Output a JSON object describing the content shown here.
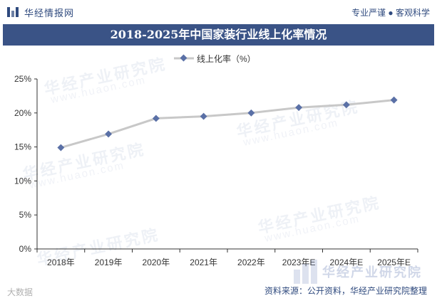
{
  "header": {
    "brand": "华经情报网",
    "tagline": "专业严谨 ● 客观科学"
  },
  "chart_data": {
    "type": "line",
    "title": "2018-2025年中国家装行业线上化率情况",
    "categories": [
      "2018年",
      "2019年",
      "2020年",
      "2021年",
      "2022年",
      "2023年E",
      "2024年E",
      "2025年E"
    ],
    "series": [
      {
        "name": "线上化率（%）",
        "values": [
          14.9,
          16.9,
          19.2,
          19.5,
          20.0,
          20.8,
          21.2,
          21.9
        ]
      }
    ],
    "ylim": [
      0,
      25
    ],
    "yticks": [
      0,
      5,
      10,
      15,
      20,
      25
    ],
    "ytick_labels": [
      "0%",
      "5%",
      "10%",
      "15%",
      "20%",
      "25%"
    ],
    "grid": false,
    "legend": "top-center",
    "colors": {
      "line": "#c8c8c8",
      "marker": "#5a70a6",
      "axis": "#333333"
    }
  },
  "footer": {
    "source": "资料来源：公开资料，华经产业研究院整理",
    "watermark": "华经产业研究院",
    "watermark_en": "www.huaon.com",
    "corner": "大数据"
  }
}
